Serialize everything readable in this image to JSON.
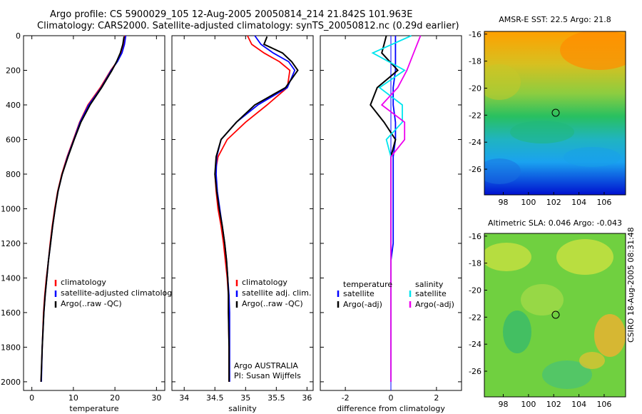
{
  "header": {
    "title_line1": "Argo profile: CS 5900029_105 12-Aug-2005 20050814_214 21.842S 101.963E",
    "title_line2": "Climatology: CARS2000. Satellite-adjusted climatology: synTS_20050812.nc (0.29d earlier)"
  },
  "footer": {
    "stamp": "CSIRO 18-Aug-2005 08:31:48"
  },
  "colors": {
    "climatology": "#ff0000",
    "satellite": "#0000ff",
    "argo": "#000000",
    "sal_satellite": "#00e5ee",
    "sal_argo": "#ee00ee"
  },
  "chart_data": [
    {
      "type": "line",
      "xlabel": "temperature",
      "ylabel": "",
      "xlim": [
        -2,
        32
      ],
      "ylim": [
        2050,
        0
      ],
      "y_reversed": true,
      "xticks": [
        0,
        10,
        20,
        30
      ],
      "yticks": [
        0,
        200,
        400,
        600,
        800,
        1000,
        1200,
        1400,
        1600,
        1800,
        2000
      ],
      "legend": {
        "position": "bottom-right",
        "entries": [
          "climatology",
          "satellite-adjusted climatolog",
          "Argo(..raw -QC)"
        ]
      },
      "series": [
        {
          "name": "climatology",
          "color": "#ff0000",
          "x": [
            22.4,
            22.1,
            21.5,
            20.5,
            19.0,
            16.5,
            13.5,
            11.5,
            10.0,
            8.5,
            7.2,
            6.2,
            5.5,
            4.9,
            4.4,
            4.0,
            3.5,
            3.1,
            2.8,
            2.5,
            2.2
          ],
          "y": [
            0,
            50,
            100,
            150,
            200,
            300,
            400,
            500,
            600,
            700,
            800,
            900,
            1000,
            1100,
            1200,
            1300,
            1400,
            1500,
            1600,
            1800,
            2000
          ]
        },
        {
          "name": "satellite-adjusted climatolog",
          "color": "#0000ff",
          "x": [
            22.6,
            22.3,
            21.7,
            20.6,
            19.1,
            16.7,
            13.7,
            11.6,
            10.1,
            8.6,
            7.3,
            6.3,
            5.6,
            5.0,
            4.5,
            4.0,
            3.6,
            3.2,
            2.9,
            2.5,
            2.3
          ],
          "y": [
            0,
            50,
            100,
            150,
            200,
            300,
            400,
            500,
            600,
            700,
            800,
            900,
            1000,
            1100,
            1200,
            1300,
            1400,
            1500,
            1600,
            1800,
            2000
          ]
        },
        {
          "name": "Argo(..raw -QC)",
          "color": "#000000",
          "x": [
            22.2,
            21.9,
            21.3,
            20.4,
            19.3,
            16.8,
            14.0,
            11.8,
            10.2,
            8.7,
            7.3,
            6.3,
            5.6,
            5.0,
            4.5,
            4.0,
            3.6,
            3.2,
            2.9,
            2.5,
            2.2
          ],
          "y": [
            5,
            50,
            100,
            150,
            200,
            300,
            400,
            500,
            600,
            700,
            800,
            900,
            1000,
            1100,
            1200,
            1300,
            1400,
            1500,
            1600,
            1800,
            2000
          ]
        }
      ]
    },
    {
      "type": "line",
      "xlabel": "salinity",
      "ylabel": "",
      "xlim": [
        33.8,
        36.1
      ],
      "ylim": [
        2050,
        0
      ],
      "y_reversed": true,
      "xticks": [
        34,
        34.5,
        35,
        35.5,
        36
      ],
      "legend": {
        "position": "bottom-right",
        "entries": [
          "climatology",
          "satellite adj. clim.",
          "Argo(..raw -QC)"
        ]
      },
      "annotations": [
        "Argo AUSTRALIA",
        "PI: Susan Wijffels"
      ],
      "series": [
        {
          "name": "climatology",
          "color": "#ff0000",
          "x": [
            35.03,
            35.1,
            35.3,
            35.55,
            35.72,
            35.68,
            35.35,
            35.0,
            34.7,
            34.55,
            34.5,
            34.52,
            34.55,
            34.6,
            34.64,
            34.67,
            34.7,
            34.72,
            34.72,
            34.73,
            34.73
          ],
          "y": [
            0,
            50,
            100,
            150,
            200,
            300,
            400,
            500,
            600,
            700,
            800,
            900,
            1000,
            1100,
            1200,
            1300,
            1400,
            1500,
            1600,
            1800,
            2000
          ]
        },
        {
          "name": "satellite adj. clim.",
          "color": "#0000ff",
          "x": [
            35.15,
            35.25,
            35.45,
            35.7,
            35.8,
            35.68,
            35.2,
            34.85,
            34.6,
            34.53,
            34.52,
            34.54,
            34.58,
            34.62,
            34.66,
            34.69,
            34.71,
            34.73,
            34.74,
            34.74,
            34.74
          ],
          "y": [
            0,
            50,
            100,
            150,
            200,
            300,
            400,
            500,
            600,
            700,
            800,
            900,
            1000,
            1100,
            1200,
            1300,
            1400,
            1500,
            1600,
            1800,
            2000
          ]
        },
        {
          "name": "Argo(..raw -QC)",
          "color": "#000000",
          "x": [
            35.35,
            35.3,
            35.6,
            35.75,
            35.85,
            35.65,
            35.15,
            34.85,
            34.6,
            34.52,
            34.5,
            34.53,
            34.57,
            34.62,
            34.66,
            34.69,
            34.71,
            34.72,
            34.72,
            34.73,
            34.73
          ],
          "y": [
            5,
            50,
            100,
            150,
            200,
            300,
            400,
            500,
            600,
            700,
            800,
            900,
            1000,
            1100,
            1200,
            1300,
            1400,
            1500,
            1600,
            1800,
            2000
          ]
        }
      ]
    },
    {
      "type": "line",
      "xlabel": "difference from climatology",
      "ylabel": "",
      "xlim": [
        -3.1,
        3.1
      ],
      "ylim": [
        2050,
        0
      ],
      "y_reversed": true,
      "xticks": [
        -2,
        0,
        2
      ],
      "legend": {
        "position": "bottom-right",
        "entries": [
          "temperature",
          "satellite",
          "Argo(-adj)",
          "salinity",
          "satellite",
          "Argo(-adj)"
        ]
      },
      "series": [
        {
          "name": "satellite",
          "group": "temperature",
          "color": "#0000ff",
          "x": [
            0.2,
            0.2,
            0.2,
            0.1,
            0.1,
            0.2,
            0.2,
            0.1,
            0.1,
            0.1,
            0.1,
            0.1,
            0.1,
            0.0,
            0.0,
            0.0,
            0.0,
            0.0,
            0.0
          ],
          "y": [
            0,
            100,
            200,
            300,
            400,
            500,
            600,
            700,
            800,
            900,
            1000,
            1100,
            1200,
            1300,
            1400,
            1500,
            1600,
            1800,
            2000
          ]
        },
        {
          "name": "Argo(-adj)",
          "group": "temperature",
          "color": "#000000",
          "x": [
            -0.2,
            -0.4,
            0.3,
            -0.6,
            -0.9,
            -0.3,
            0.2,
            0.0,
            0.0,
            0.0,
            0.0,
            0.0,
            0.0,
            0.0,
            0.0,
            0.0,
            0.0,
            0.0,
            0.0
          ],
          "y": [
            0,
            100,
            200,
            300,
            400,
            500,
            600,
            700,
            800,
            900,
            1000,
            1100,
            1200,
            1300,
            1400,
            1500,
            1600,
            1800,
            2000
          ]
        },
        {
          "name": "satellite",
          "group": "salinity",
          "color": "#00e5ee",
          "x": [
            0.9,
            -0.8,
            0.6,
            -0.5,
            0.5,
            0.5,
            -0.2,
            0.0,
            0.0,
            0.0,
            0.0,
            0.0,
            0.0,
            0.0,
            0.0,
            0.0,
            0.0,
            0.0,
            0.0
          ],
          "y": [
            0,
            100,
            200,
            300,
            400,
            500,
            600,
            700,
            800,
            900,
            1000,
            1100,
            1200,
            1300,
            1400,
            1500,
            1600,
            1800,
            2000
          ]
        },
        {
          "name": "Argo(-adj)",
          "group": "salinity",
          "color": "#ee00ee",
          "x": [
            1.3,
            1.0,
            0.7,
            0.3,
            -0.4,
            0.6,
            0.6,
            0.0,
            0.0,
            0.0,
            0.0,
            0.0,
            0.0,
            0.0,
            0.0,
            0.0,
            0.0,
            0.0,
            0.0
          ],
          "y": [
            0,
            100,
            200,
            300,
            400,
            500,
            600,
            700,
            800,
            900,
            1000,
            1100,
            1200,
            1300,
            1400,
            1500,
            1600,
            1800,
            2000
          ]
        }
      ]
    },
    {
      "type": "heatmap",
      "title": "AMSR-E SST: 22.5 Argo: 21.8",
      "xlim": [
        96.5,
        107.7
      ],
      "ylim": [
        -27.9,
        -15.8
      ],
      "xticks": [
        98,
        100,
        102,
        104,
        106
      ],
      "yticks": [
        -16,
        -18,
        -20,
        -22,
        -24,
        -26
      ],
      "marker": {
        "lon": 101.963,
        "lat": -21.842
      }
    },
    {
      "type": "heatmap",
      "title": "Altimetric SLA: 0.046 Argo: -0.043",
      "xlim": [
        96.5,
        107.7
      ],
      "ylim": [
        -27.9,
        -15.8
      ],
      "xticks": [
        98,
        100,
        102,
        104,
        106
      ],
      "yticks": [
        -16,
        -18,
        -20,
        -22,
        -24,
        -26
      ],
      "marker": {
        "lon": 101.963,
        "lat": -21.842
      }
    }
  ]
}
